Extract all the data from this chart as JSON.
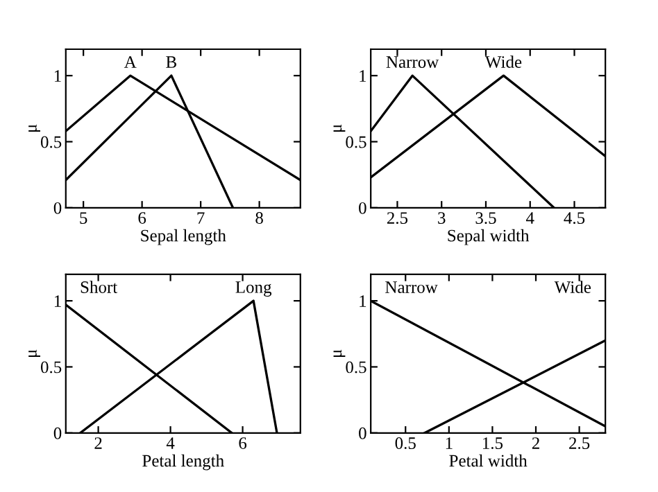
{
  "chart_data": [
    {
      "type": "line",
      "xlabel": "Sepal length",
      "ylabel": "μ",
      "xlim": [
        4.7,
        8.7
      ],
      "xticks": [
        5,
        6,
        7,
        8
      ],
      "ylim": [
        0,
        1.2
      ],
      "yticks": [
        0,
        0.5,
        1
      ],
      "grid": false,
      "legend": "top",
      "series": [
        {
          "name": "A",
          "color": "#000000",
          "x": [
            4.7,
            5.8,
            8.7
          ],
          "values": [
            0.58,
            1,
            0.21
          ]
        },
        {
          "name": "B",
          "color": "#000000",
          "x": [
            4.7,
            6.5,
            7.55
          ],
          "values": [
            0.21,
            1,
            0
          ]
        }
      ]
    },
    {
      "type": "line",
      "xlabel": "Sepal width",
      "ylabel": "μ",
      "xlim": [
        2.2,
        4.85
      ],
      "xticks": [
        2.5,
        3,
        3.5,
        4,
        4.5
      ],
      "ylim": [
        0,
        1.2
      ],
      "yticks": [
        0,
        0.5,
        1
      ],
      "grid": false,
      "legend": "top",
      "series": [
        {
          "name": "Narrow",
          "color": "#000000",
          "x": [
            2.2,
            2.67,
            4.27
          ],
          "values": [
            0.58,
            1,
            0
          ]
        },
        {
          "name": "Wide",
          "color": "#000000",
          "x": [
            2.2,
            3.7,
            4.85
          ],
          "values": [
            0.23,
            1,
            0.39
          ]
        }
      ]
    },
    {
      "type": "line",
      "xlabel": "Petal length",
      "ylabel": "μ",
      "xlim": [
        1.1,
        7.6
      ],
      "xticks": [
        2,
        4,
        6
      ],
      "ylim": [
        0,
        1.2
      ],
      "yticks": [
        0,
        0.5,
        1
      ],
      "grid": false,
      "legend": "top",
      "series": [
        {
          "name": "Short",
          "color": "#000000",
          "x": [
            1.1,
            5.7
          ],
          "values": [
            0.97,
            0
          ]
        },
        {
          "name": "Long",
          "color": "#000000",
          "x": [
            1.5,
            6.3,
            6.95
          ],
          "values": [
            0,
            1,
            0
          ]
        }
      ]
    },
    {
      "type": "line",
      "xlabel": "Petal width",
      "ylabel": "μ",
      "xlim": [
        0.1,
        2.8
      ],
      "xticks": [
        0.5,
        1,
        1.5,
        2,
        2.5
      ],
      "ylim": [
        0,
        1.2
      ],
      "yticks": [
        0,
        0.5,
        1
      ],
      "grid": false,
      "legend": "top",
      "series": [
        {
          "name": "Narrow",
          "color": "#000000",
          "x": [
            0.1,
            2.8
          ],
          "values": [
            1,
            0.05
          ]
        },
        {
          "name": "Wide",
          "color": "#000000",
          "x": [
            0.72,
            2.8
          ],
          "values": [
            0,
            0.7
          ]
        }
      ]
    }
  ]
}
